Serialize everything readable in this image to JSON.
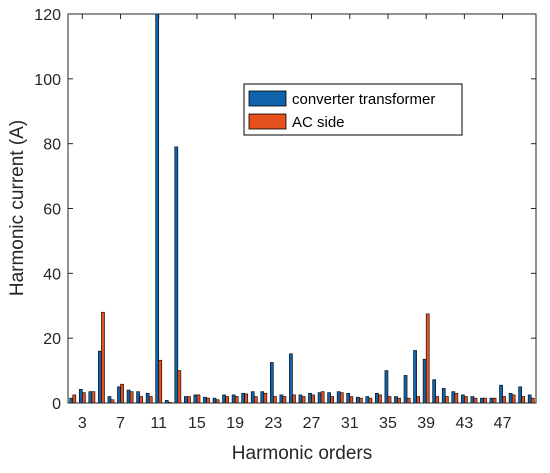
{
  "chart_data": {
    "type": "bar",
    "xlabel": "Harmonic orders",
    "ylabel": "Harmonic current (A)",
    "ylim": [
      0,
      120
    ],
    "xlim": [
      1.5,
      50.5
    ],
    "yticks": [
      0,
      20,
      40,
      60,
      80,
      100,
      120
    ],
    "xticks": [
      3,
      7,
      11,
      15,
      19,
      23,
      27,
      31,
      35,
      39,
      43,
      47
    ],
    "grid": false,
    "legend_position": "top-right",
    "categories": [
      2,
      3,
      4,
      5,
      6,
      7,
      8,
      9,
      10,
      11,
      12,
      13,
      14,
      15,
      16,
      17,
      18,
      19,
      20,
      21,
      22,
      23,
      24,
      25,
      26,
      27,
      28,
      29,
      30,
      31,
      32,
      33,
      34,
      35,
      36,
      37,
      38,
      39,
      40,
      41,
      42,
      43,
      44,
      45,
      46,
      47,
      48,
      49,
      50
    ],
    "series": [
      {
        "name": "converter transformer",
        "color": "#0F63AA",
        "values": [
          1.5,
          4.2,
          3.5,
          16.0,
          2.0,
          5.0,
          4.0,
          3.5,
          3.0,
          120,
          0.8,
          79.0,
          2.0,
          2.5,
          1.8,
          1.5,
          2.5,
          2.5,
          3.0,
          3.5,
          3.5,
          12.5,
          2.5,
          15.2,
          2.5,
          3.0,
          3.2,
          3.2,
          3.5,
          3.0,
          1.8,
          2.0,
          3.0,
          10.0,
          2.0,
          8.5,
          16.2,
          13.5,
          7.2,
          4.5,
          3.5,
          2.5,
          2.0,
          1.5,
          1.5,
          5.5,
          3.0,
          5.0,
          2.5
        ]
      },
      {
        "name": "AC side",
        "color": "#E5501E",
        "values": [
          2.5,
          3.2,
          3.5,
          28.0,
          1.0,
          5.8,
          3.5,
          2.0,
          2.0,
          13.2,
          0.2,
          10.0,
          2.0,
          2.5,
          1.5,
          1.0,
          2.0,
          2.0,
          2.8,
          2.0,
          3.0,
          2.0,
          2.0,
          2.5,
          2.0,
          2.5,
          3.5,
          2.0,
          3.2,
          2.0,
          1.5,
          1.5,
          2.5,
          2.0,
          1.5,
          1.5,
          2.0,
          27.5,
          2.0,
          2.0,
          3.0,
          2.0,
          1.5,
          1.5,
          1.5,
          2.0,
          2.5,
          2.0,
          1.5
        ]
      }
    ]
  }
}
